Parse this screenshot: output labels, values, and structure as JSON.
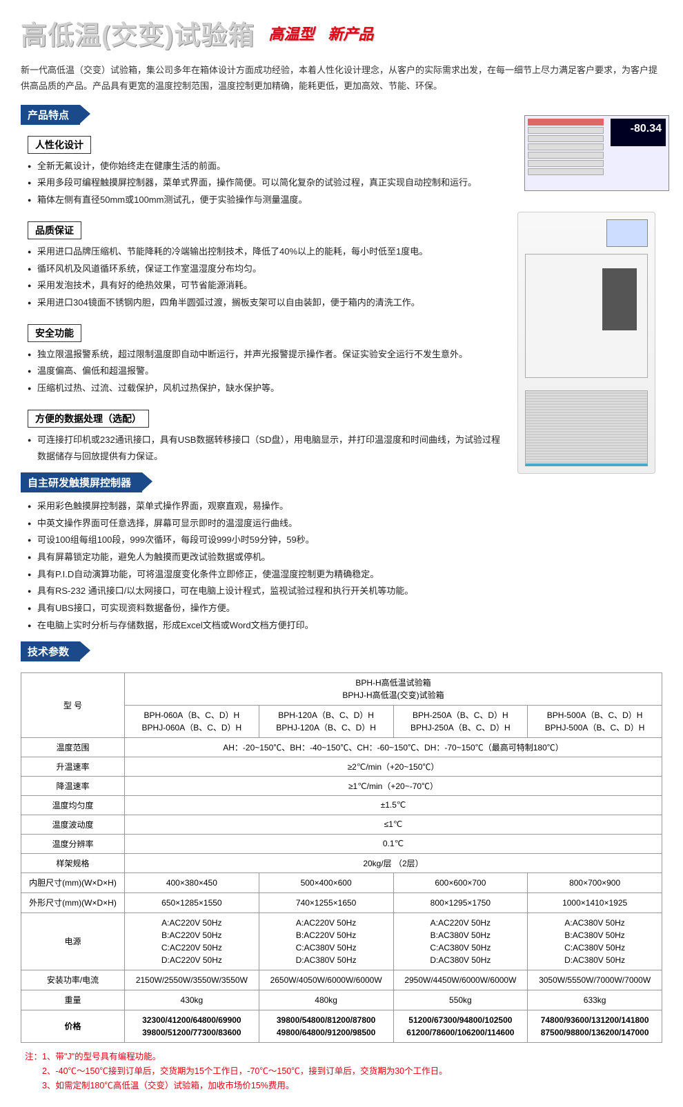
{
  "title": "高低温(交变)试验箱",
  "badges": [
    "高温型",
    "新产品"
  ],
  "intro": "新一代高低温（交变）试验箱，集公司多年在箱体设计方面成功经验，本着人性化设计理念，从客户的实际需求出发，在每一细节上尽力满足客户要求，为客户提供高品质的产品。产品具有更宽的温度控制范围，温度控制更加精确，能耗更低，更加高效、节能、环保。",
  "features_header": "产品特点",
  "groups": [
    {
      "sub": "人性化设计",
      "items": [
        "全新无氟设计，使你始终走在健康生活的前面。",
        "采用多段可编程触摸屏控制器，菜单式界面，操作简便。可以简化复杂的试验过程，真正实现自动控制和运行。",
        "箱体左侧有直径50mm或100mm测试孔，便于实验操作与测量温度。"
      ]
    },
    {
      "sub": "品质保证",
      "items": [
        "采用进口品牌压缩机、节能降耗的冷端输出控制技术，降低了40%以上的能耗，每小时低至1度电。",
        "循环风机及风道循环系统，保证工作室温湿度分布均匀。",
        "采用发泡技术，具有好的绝热效果，可节省能源消耗。",
        "采用进口304镜面不锈钢内胆，四角半圆弧过渡，搁板支架可以自由装卸，便于箱内的清洗工作。"
      ]
    },
    {
      "sub": "安全功能",
      "items": [
        "独立限温报警系统，超过限制温度即自动中断运行，并声光报警提示操作者。保证实验安全运行不发生意外。",
        "温度偏高、偏低和超温报警。",
        "压缩机过热、过流、过载保护，风机过热保护，缺水保护等。"
      ]
    },
    {
      "sub": "方便的数据处理（选配）",
      "items": [
        "可连接打印机或232通讯接口，具有USB数据转移接口（SD盘），用电脑显示，并打印温湿度和时间曲线，为试验过程数据储存与回放提供有力保证。"
      ]
    }
  ],
  "controller_header": "自主研发触摸屏控制器",
  "controller_items": [
    "采用彩色触摸屏控制器，菜单式操作界面，观察直观，易操作。",
    "中英文操作界面可任意选择，屏幕可显示即时的温湿度运行曲线。",
    "可设100组每组100段，999次循环，每段可设999小时59分钟，59秒。",
    "具有屏幕锁定功能，避免人为触摸而更改试验数据或停机。",
    "具有P.I.D自动演算功能，可将温湿度变化条件立即修正，使温湿度控制更为精确稳定。",
    "具有RS-232 通讯接口/以太网接口，可在电脑上设计程式，监视试验过程和执行开关机等功能。",
    "具有UBS接口，可实现资料数据备份，操作方便。",
    "在电脑上实时分析与存储数据，形成Excel文档或Word文档方便打印。"
  ],
  "spec_header": "技术参数",
  "table": {
    "model_label": "型 号",
    "series_header": "BPH-H高低温试验箱\nBPHJ-H高低温(交变)试验箱",
    "models": [
      "BPH-060A（B、C、D）H\nBPHJ-060A（B、C、D）H",
      "BPH-120A（B、C、D）H\nBPHJ-120A（B、C、D）H",
      "BPH-250A（B、C、D）H\nBPHJ-250A（B、C、D）H",
      "BPH-500A（B、C、D）H\nBPHJ-500A（B、C、D）H"
    ],
    "rows": [
      {
        "label": "温度范围",
        "span": "AH：-20~150℃、BH：-40~150℃、CH：-60~150℃、DH：-70~150℃（最高可特制180℃）"
      },
      {
        "label": "升温速率",
        "span": "≥2℃/min（+20~150℃）"
      },
      {
        "label": "降温速率",
        "span": "≥1℃/min（+20~-70℃）"
      },
      {
        "label": "温度均匀度",
        "span": "±1.5℃"
      },
      {
        "label": "温度波动度",
        "span": "≤1℃"
      },
      {
        "label": "温度分辨率",
        "span": "0.1℃"
      },
      {
        "label": "样架规格",
        "span": "20kg/层 （2层）"
      },
      {
        "label": "内胆尺寸(mm)(W×D×H)",
        "cells": [
          "400×380×450",
          "500×400×600",
          "600×600×700",
          "800×700×900"
        ]
      },
      {
        "label": "外形尺寸(mm)(W×D×H)",
        "cells": [
          "650×1285×1550",
          "740×1255×1650",
          "800×1295×1750",
          "1000×1410×1925"
        ]
      },
      {
        "label": "电源",
        "cells": [
          "A:AC220V 50Hz\nB:AC220V 50Hz\nC:AC220V 50Hz\nD:AC220V 50Hz",
          "A:AC220V 50Hz\nB:AC220V 50Hz\nC:AC380V 50Hz\nD:AC380V 50Hz",
          "A:AC220V 50Hz\nB:AC380V 50Hz\nC:AC380V 50Hz\nD:AC380V 50Hz",
          "A:AC380V 50Hz\nB:AC380V 50Hz\nC:AC380V 50Hz\nD:AC380V 50Hz"
        ]
      },
      {
        "label": "安装功率/电流",
        "cells": [
          "2150W/2550W/3550W/3550W",
          "2650W/4050W/6000W/6000W",
          "2950W/4450W/6000W/6000W",
          "3050W/5550W/7000W/7000W"
        ]
      },
      {
        "label": "重量",
        "cells": [
          "430kg",
          "480kg",
          "550kg",
          "633kg"
        ]
      },
      {
        "label": "价格",
        "bold": true,
        "cells": [
          "32300/41200/64800/69900\n39800/51200/77300/83600",
          "39800/54800/81200/87800\n49800/64800/91200/98500",
          "51200/67300/94800/102500\n61200/78600/106200/114600",
          "74800/93600/131200/141800\n87500/98800/136200/147000"
        ]
      }
    ]
  },
  "notes_label": "注：",
  "notes": [
    "1、带\"J\"的型号具有编程功能。",
    "2、-40℃～150℃接到订单后，交货期为15个工作日，-70℃～150℃，接到订单后，交货期为30个工作日。",
    "3、如需定制180℃高低温（交变）试验箱，加收市场价15%费用。"
  ],
  "screen": {
    "value": "-80.34"
  },
  "colors": {
    "primary": "#1b4a8a",
    "accent": "#e60012"
  }
}
